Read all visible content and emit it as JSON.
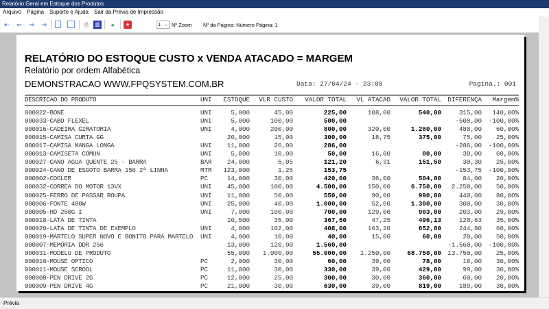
{
  "window": {
    "title": "Relatório Geral em Estoque dos Produtos"
  },
  "menu": [
    "Arquivo",
    "Página",
    "Suporte e Ajuda",
    "Sair da Prévia de Impressão"
  ],
  "toolbar": {
    "zoom_value": "1",
    "zoom_label": "Nº Zoom",
    "page_label": "Nº da Página: Número Página: 1"
  },
  "report": {
    "title": "RELATÓRIO DO ESTOQUE CUSTO x VENDA ATACADO = MARGEM",
    "subtitle": "Relatório por ordem Alfabética",
    "company": "DEMONSTRACAO WWW.FPQSYSTEM.COM.BR",
    "date": "Data: 27/04/24 - 23:08",
    "page": "Pagina.: 001",
    "columns": [
      "DESCRICAO DO PRODUTO",
      "UNI",
      "ESTOQUE",
      "VLR CUSTO",
      "VALOR TOTAL",
      "VL ATACAD",
      "VALOR TOTAL",
      "DIFERENÇA",
      "Margem%"
    ],
    "rows": [
      [
        "000022-BONE",
        "UNI",
        "5,000",
        "45,00",
        "225,00",
        "108,00",
        "540,00",
        "315,00",
        "140,00%"
      ],
      [
        "000033-CABO FLEXEL",
        "UNI",
        "5,000",
        "100,00",
        "500,00",
        "",
        "",
        "-500,00",
        "-100,00%"
      ],
      [
        "000016-CADEIRA GIRATORIA",
        "UNI",
        "4,000",
        "200,00",
        "800,00",
        "320,00",
        "1.280,00",
        "480,00",
        "60,00%"
      ],
      [
        "000015-CAMISA CURTA GG",
        "",
        "20,000",
        "15,00",
        "300,00",
        "18,75",
        "375,00",
        "75,00",
        "25,00%"
      ],
      [
        "000017-CAMISA MANGA LONGA",
        "UNI",
        "11,000",
        "26,00",
        "286,00",
        "",
        "",
        "-286,00",
        "-100,00%"
      ],
      [
        "000013-CAMISETA COMUN",
        "UNI",
        "5,000",
        "10,00",
        "50,00",
        "16,00",
        "80,00",
        "30,00",
        "60,00%"
      ],
      [
        "000027-CANO AGUA QUENTE 25 - BARRA",
        "BAR",
        "24,000",
        "5,05",
        "121,20",
        "6,31",
        "151,50",
        "30,30",
        "25,00%"
      ],
      [
        "000024-CANO DE ESGOTO BARRA 150 2ª LINHA",
        "MTR",
        "123,000",
        "1,25",
        "153,75",
        "",
        "",
        "-153,75",
        "-100,00%"
      ],
      [
        "000002-COOLER",
        "PC",
        "14,000",
        "30,00",
        "420,00",
        "36,00",
        "504,00",
        "84,00",
        "20,00%"
      ],
      [
        "000032-CORREA DO MOTOR 13VX",
        "UNI",
        "45,000",
        "100,00",
        "4.500,00",
        "150,00",
        "6.750,00",
        "2.250,00",
        "50,00%"
      ],
      [
        "000025-FERRO DE PASSAR ROUPA",
        "UNI",
        "11,000",
        "50,00",
        "550,00",
        "90,00",
        "990,00",
        "440,00",
        "80,00%"
      ],
      [
        "000006-FONTE 400W",
        "UNI",
        "25,000",
        "40,00",
        "1.000,00",
        "52,00",
        "1.300,00",
        "300,00",
        "30,00%"
      ],
      [
        "000005-HD 250G   I",
        "UNI",
        "7,000",
        "100,00",
        "700,00",
        "129,00",
        "903,00",
        "203,00",
        "29,00%"
      ],
      [
        "000018-LATA DE TINTA",
        "",
        "10,500",
        "35,00",
        "367,50",
        "47,25",
        "496,13",
        "128,63",
        "35,00%"
      ],
      [
        "000020-LATA DE TINTA DE EXEMPLO",
        "UNI",
        "4,000",
        "102,00",
        "408,00",
        "163,20",
        "652,80",
        "244,80",
        "60,00%"
      ],
      [
        "000019-MARTELO SUPER NOVO E BONITO PARA MARTELO",
        "UNI",
        "4,000",
        "10,00",
        "40,00",
        "15,00",
        "60,00",
        "20,00",
        "50,00%"
      ],
      [
        "000007-MEMÓRIA DDR 256",
        "",
        "13,000",
        "120,00",
        "1.560,00",
        "",
        "",
        "-1.560,00",
        "-100,00%"
      ],
      [
        "000031-MODELO DE PRODUTO",
        "",
        "55,000",
        "1.000,00",
        "55.000,00",
        "1.250,00",
        "68.750,00",
        "13.750,00",
        "25,00%"
      ],
      [
        "000010-MOUSE OPTICO",
        "PC",
        "2,000",
        "30,00",
        "60,00",
        "39,00",
        "78,00",
        "18,00",
        "30,00%"
      ],
      [
        "000011-MOUSE SCROOL",
        "PC",
        "11,000",
        "30,00",
        "330,00",
        "39,00",
        "429,00",
        "99,00",
        "30,00%"
      ],
      [
        "000008-PEN DRIVE 2G",
        "PC",
        "12,000",
        "25,00",
        "300,00",
        "30,00",
        "360,00",
        "60,00",
        "20,00%"
      ],
      [
        "000009-PEN DRIVE 4G",
        "PC",
        "21,000",
        "30,00",
        "630,00",
        "39,00",
        "819,00",
        "189,00",
        "30,00%"
      ]
    ]
  },
  "status": {
    "text": "Prévia"
  }
}
